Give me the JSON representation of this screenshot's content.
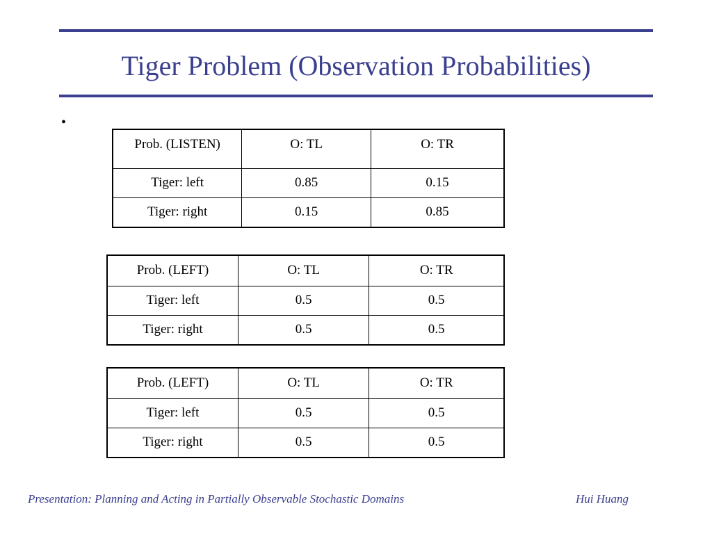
{
  "slide": {
    "title": "Tiger Problem (Observation Probabilities)",
    "bullet": "•",
    "accent_color": "#3a3f8f"
  },
  "tables": [
    {
      "headers": [
        "Prob. (LISTEN)",
        "O: TL",
        "O: TR"
      ],
      "rows": [
        [
          "Tiger: left",
          "0.85",
          "0.15"
        ],
        [
          "Tiger: right",
          "0.15",
          "0.85"
        ]
      ]
    },
    {
      "headers": [
        "Prob. (LEFT)",
        "O: TL",
        "O: TR"
      ],
      "rows": [
        [
          "Tiger: left",
          "0.5",
          "0.5"
        ],
        [
          "Tiger: right",
          "0.5",
          "0.5"
        ]
      ]
    },
    {
      "headers": [
        "Prob. (LEFT)",
        "O: TL",
        "O: TR"
      ],
      "rows": [
        [
          "Tiger: left",
          "0.5",
          "0.5"
        ],
        [
          "Tiger: right",
          "0.5",
          "0.5"
        ]
      ]
    }
  ],
  "footer": {
    "left": "Presentation: Planning and Acting in Partially Observable Stochastic Domains",
    "right": "Hui Huang"
  }
}
